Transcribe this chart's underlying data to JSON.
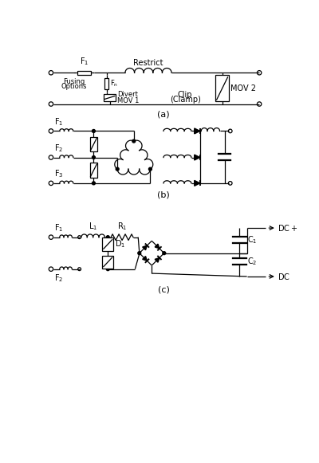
{
  "fig_width": 4.0,
  "fig_height": 5.81,
  "dpi": 100,
  "bg_color": "#ffffff",
  "line_color": "#000000",
  "lw": 0.9,
  "label_a": "(a)",
  "label_b": "(b)",
  "label_c": "(c)",
  "fontsize_label": 8,
  "fontsize_text": 7,
  "fontsize_small": 6
}
